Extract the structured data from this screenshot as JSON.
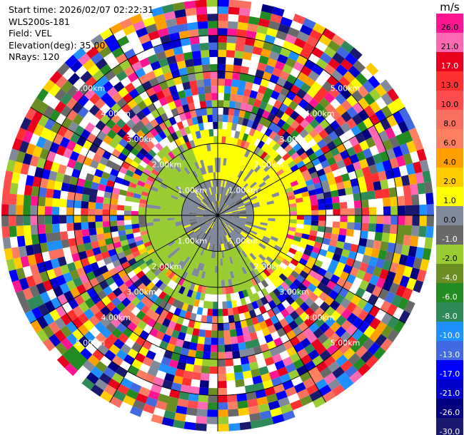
{
  "info": {
    "start_time": "Start time: 2026/02/07 02:22:31",
    "instrument": "WLS200s-181",
    "field": "Field: VEL",
    "elevation": "Elevation(deg): 35.00",
    "nrays": "NRays: 120"
  },
  "colorbar": {
    "unit": "m/s",
    "ticks": [
      "26.0",
      "21.0",
      "17.0",
      "13.0",
      "10.0",
      "8.0",
      "6.0",
      "4.0",
      "2.0",
      "1.0",
      "0.0",
      "-1.0",
      "-2.0",
      "-4.0",
      "-6.0",
      "-8.0",
      "-10.0",
      "-13.0",
      "-17.0",
      "-21.0",
      "-26.0",
      "-30.0"
    ],
    "colors": [
      "#ff1493",
      "#ff69b4",
      "#e8001c",
      "#ff3030",
      "#ff4d4d",
      "#fa7060",
      "#ff8060",
      "#ff9f00",
      "#ffcc00",
      "#ffff00",
      "#808a9b",
      "#696969",
      "#9acd32",
      "#6b8e23",
      "#228b22",
      "#2e8b57",
      "#1e90ff",
      "#4169e1",
      "#0000ff",
      "#0000cd",
      "#000080",
      "#191970"
    ]
  },
  "range_labels": [
    "1.00km",
    "2.00km",
    "3.00km",
    "4.00km",
    "5.00km"
  ],
  "chart_data": {
    "type": "heatmap",
    "projection": "polar PPI",
    "field": "VEL",
    "units": "m/s",
    "n_rays": 120,
    "range_rings_km": [
      1.0,
      2.0,
      3.0,
      4.0,
      5.0
    ],
    "max_range_km": 6.0,
    "value_range": [
      -30.0,
      26.0
    ],
    "spoke_angles_deg": [
      0,
      30,
      60,
      90,
      120,
      150,
      180,
      210,
      240,
      270,
      300,
      330
    ]
  }
}
